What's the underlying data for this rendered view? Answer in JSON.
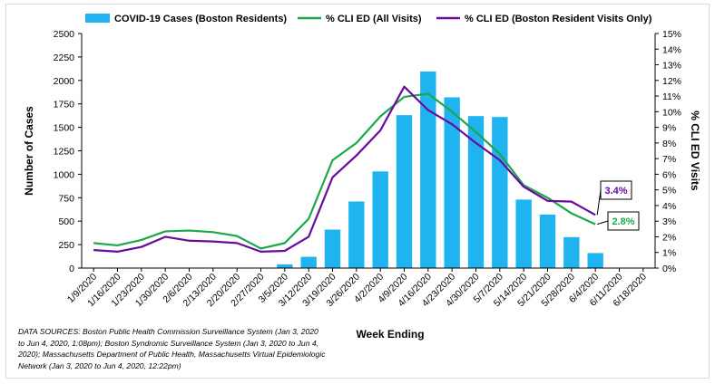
{
  "chart_data": {
    "type": "bar",
    "xlabel": "Week Ending",
    "ylabel": "Number of Cases",
    "y2label": "% CLI ED Visits",
    "ylim": [
      0,
      2500
    ],
    "y2lim": [
      0,
      15
    ],
    "yticks": [
      "0",
      "250",
      "500",
      "750",
      "1000",
      "1250",
      "1500",
      "1750",
      "2000",
      "2250",
      "2500"
    ],
    "y2ticks": [
      "0%",
      "1%",
      "2%",
      "3%",
      "4%",
      "5%",
      "6%",
      "7%",
      "8%",
      "9%",
      "10%",
      "11%",
      "12%",
      "13%",
      "14%",
      "15%"
    ],
    "categories": [
      "1/9/2020",
      "1/16/2020",
      "1/23/2020",
      "1/30/2020",
      "2/6/2020",
      "2/13/2020",
      "2/20/2020",
      "2/27/2020",
      "3/5/2020",
      "3/12/2020",
      "3/19/2020",
      "3/26/2020",
      "4/2/2020",
      "4/9/2020",
      "4/16/2020",
      "4/23/2020",
      "4/30/2020",
      "5/7/2020",
      "5/14/2020",
      "5/21/2020",
      "5/28/2020",
      "6/4/2020",
      "6/11/2020",
      "6/18/2020"
    ],
    "bar_series": {
      "name": "COVID-19 Cases (Boston Residents)",
      "color": "#1fb4f0",
      "values": [
        0,
        0,
        0,
        0,
        0,
        0,
        0,
        0,
        40,
        120,
        410,
        710,
        1030,
        1630,
        2095,
        1820,
        1620,
        1610,
        730,
        570,
        330,
        160,
        0,
        0
      ]
    },
    "line_series": [
      {
        "name": "% CLI ED (All Visits)",
        "color": "#1aa84a",
        "values": [
          1.6,
          1.45,
          1.8,
          2.35,
          2.4,
          2.3,
          2.05,
          1.25,
          1.6,
          3.15,
          6.9,
          8.0,
          9.7,
          10.95,
          11.15,
          10.0,
          8.7,
          7.3,
          5.3,
          4.5,
          3.5,
          2.8,
          null,
          null
        ]
      },
      {
        "name": "% CLI ED (Boston Resident Visits Only)",
        "color": "#6a0a9e",
        "values": [
          1.15,
          1.05,
          1.35,
          2.0,
          1.75,
          1.7,
          1.6,
          1.05,
          1.1,
          2.0,
          5.8,
          7.2,
          8.8,
          11.6,
          10.1,
          9.2,
          8.0,
          6.9,
          5.2,
          4.3,
          4.25,
          3.4,
          null,
          null
        ]
      }
    ],
    "annotations": [
      {
        "text": "3.4%",
        "color": "#6a0a9e",
        "series": 1
      },
      {
        "text": "2.8%",
        "color": "#1aa84a",
        "series": 0
      }
    ],
    "legend": "top",
    "grid": false
  },
  "sources_text": "DATA SOURCES: Boston Public Health Commission Surveillance System (Jan 3, 2020 to Jun 4, 2020, 1:08pm);  Boston Syndromic Surveillance System (Jan 3, 2020 to Jun 4, 2020); Massachusetts Department of Public Health, Massachusetts Virtual Epidemiologic Network (Jan 3, 2020 to Jun 4, 2020, 12:22pm)"
}
